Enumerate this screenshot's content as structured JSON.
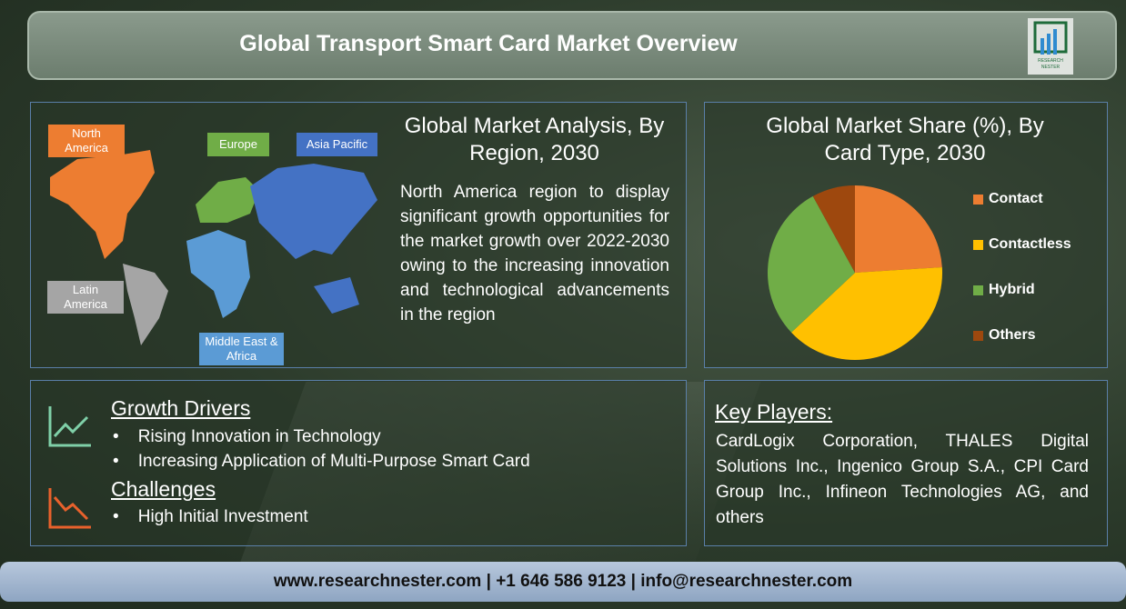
{
  "header": {
    "title": "Global Transport Smart Card Market Overview",
    "logo_text": "RESEARCH NESTER"
  },
  "region": {
    "title": "Global Market Analysis, By Region, 2030",
    "description": "North America region to display significant growth opportunities for the market growth over 2022-2030 owing to the increasing innovation and technological advancements in the region",
    "labels": [
      {
        "name": "North America",
        "color": "#ed7d31"
      },
      {
        "name": "Europe",
        "color": "#70ad47"
      },
      {
        "name": "Asia Pacific",
        "color": "#4472c4"
      },
      {
        "name": "Latin America",
        "color": "#a5a5a5"
      },
      {
        "name": "Middle East & Africa",
        "color": "#5b9bd5"
      }
    ]
  },
  "chart_data": {
    "type": "pie",
    "title": "Global Market Share (%), By Card Type, 2030",
    "categories": [
      "Contact",
      "Contactless",
      "Hybrid",
      "Others"
    ],
    "values": [
      24,
      39,
      29,
      8
    ],
    "colors": [
      "#ed7d31",
      "#ffc000",
      "#70ad47",
      "#9e480e"
    ],
    "legend": "right"
  },
  "drivers": {
    "title": "Growth Drivers",
    "items": [
      "Rising Innovation in Technology",
      "Increasing Application of Multi-Purpose Smart Card"
    ]
  },
  "challenges": {
    "title": "Challenges",
    "items": [
      "High Initial Investment"
    ]
  },
  "key_players": {
    "title": "Key Players:",
    "text": "CardLogix Corporation, THALES Digital Solutions Inc., Ingenico Group S.A., CPI Card Group Inc., Infineon Technologies AG, and others"
  },
  "footer": {
    "text": "www.researchnester.com | +1 646 586 9123 | info@researchnester.com"
  }
}
